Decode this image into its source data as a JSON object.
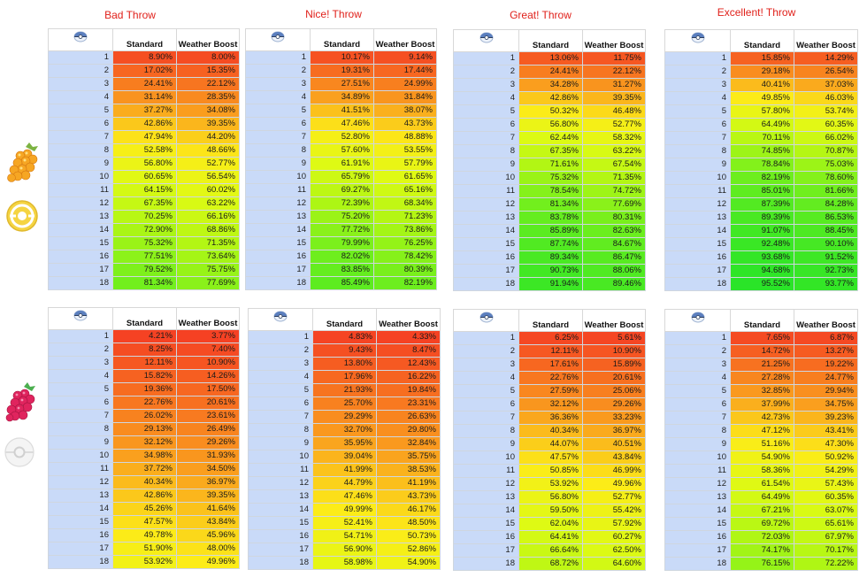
{
  "headers": {
    "standard": "Standard",
    "weather": "Weather Boost"
  },
  "icons": {
    "ball": "pokeball-icon",
    "berry_top": "golden-razz-berry-icon",
    "ball_top": "ultra-ball-icon",
    "berry_bottom": "razz-berry-icon",
    "ball_bottom": "poke-ball-icon"
  },
  "levels": [
    "1",
    "2",
    "3",
    "4",
    "5",
    "6",
    "7",
    "8",
    "9",
    "10",
    "11",
    "12",
    "13",
    "14",
    "15",
    "16",
    "17",
    "18"
  ],
  "throws": [
    "Bad Throw",
    "Nice! Throw",
    "Great! Throw",
    "Excellent! Throw"
  ],
  "tables": [
    {
      "standard": [
        "8.90%",
        "17.02%",
        "24.41%",
        "31.14%",
        "37.27%",
        "42.86%",
        "47.94%",
        "52.58%",
        "56.80%",
        "60.65%",
        "64.15%",
        "67.35%",
        "70.25%",
        "72.90%",
        "75.32%",
        "77.51%",
        "79.52%",
        "81.34%"
      ],
      "weather": [
        "8.00%",
        "15.35%",
        "22.12%",
        "28.35%",
        "34.08%",
        "39.35%",
        "44.20%",
        "48.66%",
        "52.77%",
        "56.54%",
        "60.02%",
        "63.22%",
        "66.16%",
        "68.86%",
        "71.35%",
        "73.64%",
        "75.75%",
        "77.69%"
      ]
    },
    {
      "standard": [
        "10.17%",
        "19.31%",
        "27.51%",
        "34.89%",
        "41.51%",
        "47.46%",
        "52.80%",
        "57.60%",
        "61.91%",
        "65.79%",
        "69.27%",
        "72.39%",
        "75.20%",
        "77.72%",
        "79.99%",
        "82.02%",
        "83.85%",
        "85.49%"
      ],
      "weather": [
        "9.14%",
        "17.44%",
        "24.99%",
        "31.84%",
        "38.07%",
        "43.73%",
        "48.88%",
        "53.55%",
        "57.79%",
        "61.65%",
        "65.16%",
        "68.34%",
        "71.23%",
        "73.86%",
        "76.25%",
        "78.42%",
        "80.39%",
        "82.19%"
      ]
    },
    {
      "standard": [
        "13.06%",
        "24.41%",
        "34.28%",
        "42.86%",
        "50.32%",
        "56.80%",
        "62.44%",
        "67.35%",
        "71.61%",
        "75.32%",
        "78.54%",
        "81.34%",
        "83.78%",
        "85.89%",
        "87.74%",
        "89.34%",
        "90.73%",
        "91.94%"
      ],
      "weather": [
        "11.75%",
        "22.12%",
        "31.27%",
        "39.35%",
        "46.48%",
        "52.77%",
        "58.32%",
        "63.22%",
        "67.54%",
        "71.35%",
        "74.72%",
        "77.69%",
        "80.31%",
        "82.63%",
        "84.67%",
        "86.47%",
        "88.06%",
        "89.46%"
      ]
    },
    {
      "standard": [
        "15.85%",
        "29.18%",
        "40.41%",
        "49.85%",
        "57.80%",
        "64.49%",
        "70.11%",
        "74.85%",
        "78.84%",
        "82.19%",
        "85.01%",
        "87.39%",
        "89.39%",
        "91.07%",
        "92.48%",
        "93.68%",
        "94.68%",
        "95.52%"
      ],
      "weather": [
        "14.29%",
        "26.54%",
        "37.03%",
        "46.03%",
        "53.74%",
        "60.35%",
        "66.02%",
        "70.87%",
        "75.03%",
        "78.60%",
        "81.66%",
        "84.28%",
        "86.53%",
        "88.45%",
        "90.10%",
        "91.52%",
        "92.73%",
        "93.77%"
      ]
    },
    {
      "standard": [
        "4.21%",
        "8.25%",
        "12.11%",
        "15.82%",
        "19.36%",
        "22.76%",
        "26.02%",
        "29.13%",
        "32.12%",
        "34.98%",
        "37.72%",
        "40.34%",
        "42.86%",
        "45.26%",
        "47.57%",
        "49.78%",
        "51.90%",
        "53.92%"
      ],
      "weather": [
        "3.77%",
        "7.40%",
        "10.90%",
        "14.26%",
        "17.50%",
        "20.61%",
        "23.61%",
        "26.49%",
        "29.26%",
        "31.93%",
        "34.50%",
        "36.97%",
        "39.35%",
        "41.64%",
        "43.84%",
        "45.96%",
        "48.00%",
        "49.96%"
      ]
    },
    {
      "standard": [
        "4.83%",
        "9.43%",
        "13.80%",
        "17.96%",
        "21.93%",
        "25.70%",
        "29.29%",
        "32.70%",
        "35.95%",
        "39.04%",
        "41.99%",
        "44.79%",
        "47.46%",
        "49.99%",
        "52.41%",
        "54.71%",
        "56.90%",
        "58.98%"
      ],
      "weather": [
        "4.33%",
        "8.47%",
        "12.43%",
        "16.22%",
        "19.84%",
        "23.31%",
        "26.63%",
        "29.80%",
        "32.84%",
        "35.75%",
        "38.53%",
        "41.19%",
        "43.73%",
        "46.17%",
        "48.50%",
        "50.73%",
        "52.86%",
        "54.90%"
      ]
    },
    {
      "standard": [
        "6.25%",
        "12.11%",
        "17.61%",
        "22.76%",
        "27.59%",
        "32.12%",
        "36.36%",
        "40.34%",
        "44.07%",
        "47.57%",
        "50.85%",
        "53.92%",
        "56.80%",
        "59.50%",
        "62.04%",
        "64.41%",
        "66.64%",
        "68.72%"
      ],
      "weather": [
        "5.61%",
        "10.90%",
        "15.89%",
        "20.61%",
        "25.06%",
        "29.26%",
        "33.23%",
        "36.97%",
        "40.51%",
        "43.84%",
        "46.99%",
        "49.96%",
        "52.77%",
        "55.42%",
        "57.92%",
        "60.27%",
        "62.50%",
        "64.60%"
      ]
    },
    {
      "standard": [
        "7.65%",
        "14.72%",
        "21.25%",
        "27.28%",
        "32.85%",
        "37.99%",
        "42.73%",
        "47.12%",
        "51.16%",
        "54.90%",
        "58.36%",
        "61.54%",
        "64.49%",
        "67.21%",
        "69.72%",
        "72.03%",
        "74.17%",
        "76.15%"
      ],
      "weather": [
        "6.87%",
        "13.27%",
        "19.22%",
        "24.77%",
        "29.94%",
        "34.75%",
        "39.23%",
        "43.41%",
        "47.30%",
        "50.92%",
        "54.29%",
        "57.43%",
        "60.35%",
        "63.07%",
        "65.61%",
        "67.97%",
        "70.17%",
        "72.22%"
      ]
    }
  ]
}
